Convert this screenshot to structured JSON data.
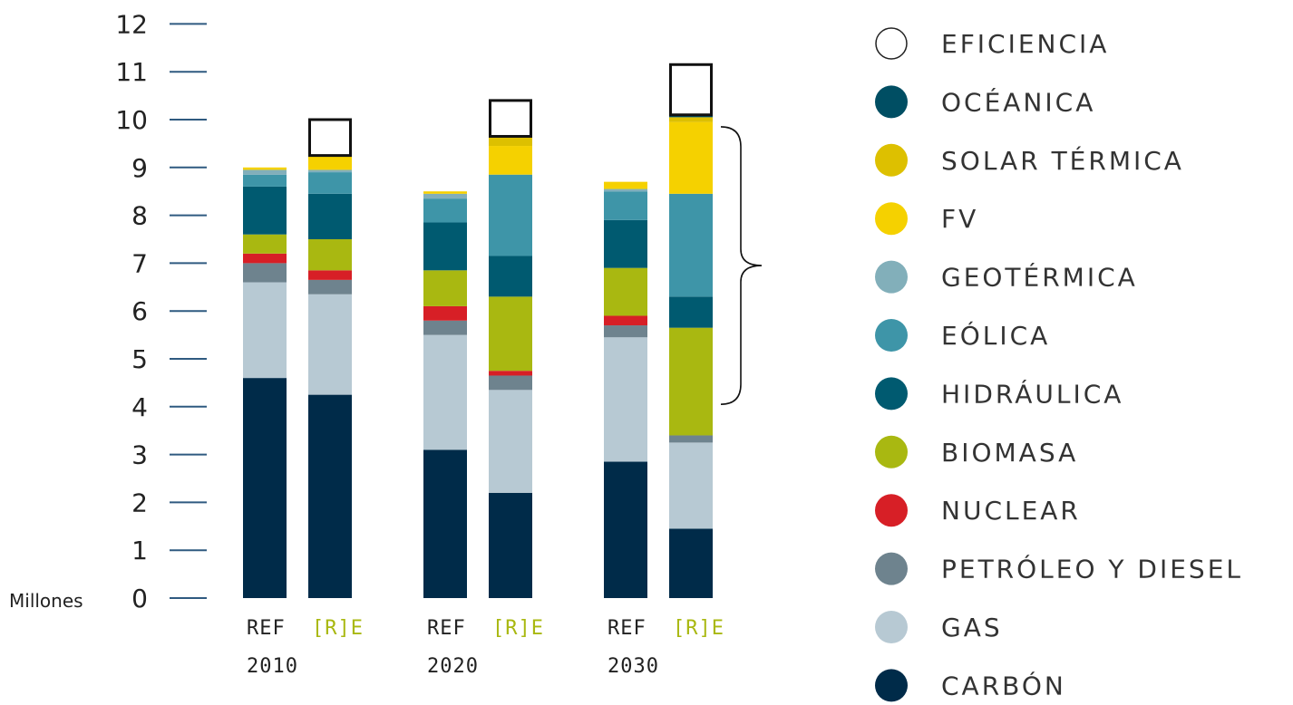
{
  "chart_data": {
    "type": "bar",
    "stacked": true,
    "unit_label": "Millones",
    "y_ticks": [
      "0",
      "1",
      "2",
      "3",
      "4",
      "5",
      "6",
      "7",
      "8",
      "9",
      "10",
      "11",
      "12"
    ],
    "ylim": [
      0,
      12
    ],
    "grid": false,
    "legend_position": "right",
    "bars": [
      {
        "scenario": "REF",
        "year": "2010"
      },
      {
        "scenario": "[R]E",
        "year": ""
      },
      {
        "scenario": "REF",
        "year": "2020"
      },
      {
        "scenario": "[R]E",
        "year": ""
      },
      {
        "scenario": "REF",
        "year": "2030"
      },
      {
        "scenario": "[R]E",
        "year": ""
      }
    ],
    "series": [
      {
        "name": "CARBÓN",
        "color": "#002b49",
        "values": [
          4.6,
          4.25,
          3.1,
          2.2,
          2.85,
          1.45
        ]
      },
      {
        "name": "GAS",
        "color": "#b7c9d3",
        "values": [
          2.0,
          2.1,
          2.4,
          2.15,
          2.6,
          1.8
        ]
      },
      {
        "name": "PETRÓLEO Y DIESEL",
        "color": "#6e838e",
        "values": [
          0.4,
          0.3,
          0.3,
          0.3,
          0.25,
          0.15
        ]
      },
      {
        "name": "NUCLEAR",
        "color": "#d71f26",
        "values": [
          0.2,
          0.2,
          0.3,
          0.1,
          0.2,
          0.0
        ]
      },
      {
        "name": "BIOMASA",
        "color": "#a9b811",
        "values": [
          0.4,
          0.65,
          0.75,
          1.55,
          1.0,
          2.25
        ]
      },
      {
        "name": "HIDRÁULICA",
        "color": "#005a70",
        "values": [
          1.0,
          0.95,
          1.0,
          0.85,
          1.0,
          0.65
        ]
      },
      {
        "name": "EÓLICA",
        "color": "#3e95a8",
        "values": [
          0.25,
          0.45,
          0.5,
          1.7,
          0.6,
          2.15
        ]
      },
      {
        "name": "GEOTÉRMICA",
        "color": "#82afba",
        "values": [
          0.1,
          0.05,
          0.1,
          0.0,
          0.05,
          0.0
        ]
      },
      {
        "name": "FV",
        "color": "#f5d100",
        "values": [
          0.05,
          0.3,
          0.05,
          0.6,
          0.15,
          1.5
        ]
      },
      {
        "name": "SOLAR TÉRMICA",
        "color": "#ddc000",
        "values": [
          0.0,
          0.0,
          0.0,
          0.2,
          0.0,
          0.1
        ]
      },
      {
        "name": "OCÉANICA",
        "color": "#004e63",
        "values": [
          0.0,
          0.0,
          0.0,
          0.0,
          0.0,
          0.05
        ]
      },
      {
        "name": "EFICIENCIA",
        "color": "#ffffff",
        "outline": true,
        "values": [
          0.0,
          0.75,
          0.0,
          0.75,
          0.0,
          1.05
        ]
      }
    ],
    "brace_range": [
      4.05,
      9.85
    ],
    "colors": {
      "axis": "#2f5a80",
      "scenario_ref": "#222222",
      "scenario_re": "#a9b811"
    }
  }
}
